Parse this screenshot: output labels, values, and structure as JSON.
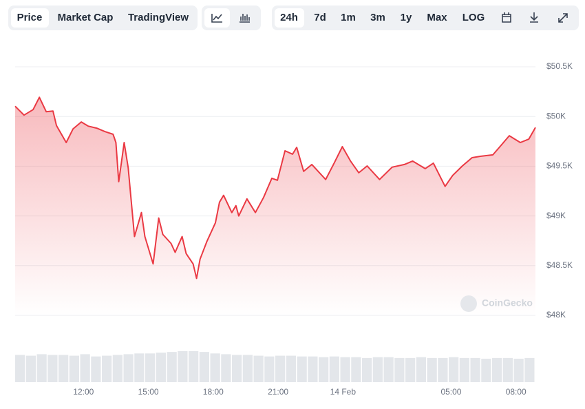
{
  "toolbar": {
    "views": [
      "Price",
      "Market Cap",
      "TradingView"
    ],
    "ranges": [
      "24h",
      "7d",
      "1m",
      "3m",
      "1y",
      "Max",
      "LOG"
    ]
  },
  "chart_data": {
    "type": "line",
    "watermark": "CoinGecko",
    "color": "#ea3943",
    "x": [
      -15.16,
      -14.75,
      -14.33,
      -14.04,
      -13.72,
      -13.41,
      -13.25,
      -12.8,
      -12.48,
      -12.1,
      -11.78,
      -11.39,
      -11.01,
      -10.63,
      -10.5,
      -10.37,
      -10.25,
      -10.12,
      -9.93,
      -9.8,
      -9.64,
      -9.32,
      -9.16,
      -8.78,
      -8.52,
      -8.33,
      -7.95,
      -7.76,
      -7.44,
      -7.25,
      -6.93,
      -6.77,
      -6.61,
      -6.29,
      -5.9,
      -5.71,
      -5.52,
      -5.14,
      -4.95,
      -4.82,
      -4.44,
      -4.05,
      -3.67,
      -3.29,
      -3.03,
      -2.68,
      -2.33,
      -2.14,
      -1.82,
      -1.44,
      -0.8,
      -0.41,
      -0.03,
      0.35,
      0.73,
      1.12,
      1.69,
      2.27,
      2.84,
      3.22,
      3.8,
      4.18,
      4.72,
      5.07,
      5.52,
      5.97,
      6.35,
      6.93,
      7.31,
      7.69,
      8.2,
      8.59,
      8.9
    ],
    "values": [
      50.103,
      50.014,
      50.069,
      50.193,
      50.048,
      50.055,
      49.91,
      49.738,
      49.876,
      49.945,
      49.903,
      49.883,
      49.848,
      49.821,
      49.738,
      49.345,
      49.531,
      49.738,
      49.483,
      49.172,
      48.793,
      49.034,
      48.793,
      48.517,
      48.979,
      48.814,
      48.724,
      48.634,
      48.793,
      48.621,
      48.517,
      48.372,
      48.566,
      48.745,
      48.931,
      49.138,
      49.207,
      49.034,
      49.103,
      49.0,
      49.172,
      49.034,
      49.186,
      49.379,
      49.359,
      49.655,
      49.621,
      49.69,
      49.448,
      49.517,
      49.366,
      49.531,
      49.697,
      49.552,
      49.434,
      49.503,
      49.366,
      49.49,
      49.517,
      49.552,
      49.476,
      49.531,
      49.297,
      49.407,
      49.503,
      49.586,
      49.6,
      49.614,
      49.71,
      49.807,
      49.738,
      49.772,
      49.89
    ],
    "xlim": [
      -15.16,
      8.9
    ],
    "xticks": [
      {
        "value": -12,
        "label": "12:00"
      },
      {
        "value": -9,
        "label": "15:00"
      },
      {
        "value": -6,
        "label": "18:00"
      },
      {
        "value": -3,
        "label": "21:00"
      },
      {
        "value": 0,
        "label": "14 Feb"
      },
      {
        "value": 5,
        "label": "05:00"
      },
      {
        "value": 8,
        "label": "08:00"
      }
    ],
    "ylim": [
      48,
      50.5
    ],
    "yticks": [
      {
        "value": 48,
        "label": "$48K"
      },
      {
        "value": 48.5,
        "label": "$48.5K"
      },
      {
        "value": 49,
        "label": "$49K"
      },
      {
        "value": 49.5,
        "label": "$49.5K"
      },
      {
        "value": 50,
        "label": "$50K"
      },
      {
        "value": 50.5,
        "label": "$50.5K"
      }
    ],
    "grid": true,
    "volume": {
      "color": "#e3e6ea",
      "values": [
        36,
        35,
        37,
        36,
        36,
        35,
        37,
        34,
        35,
        36,
        37,
        38,
        38,
        39,
        40,
        41,
        41,
        40,
        38,
        37,
        36,
        36,
        35,
        34,
        35,
        35,
        34,
        34,
        33,
        34,
        33,
        33,
        32,
        33,
        33,
        32,
        32,
        33,
        32,
        32,
        33,
        32,
        32,
        31,
        32,
        32,
        31,
        32
      ]
    }
  }
}
